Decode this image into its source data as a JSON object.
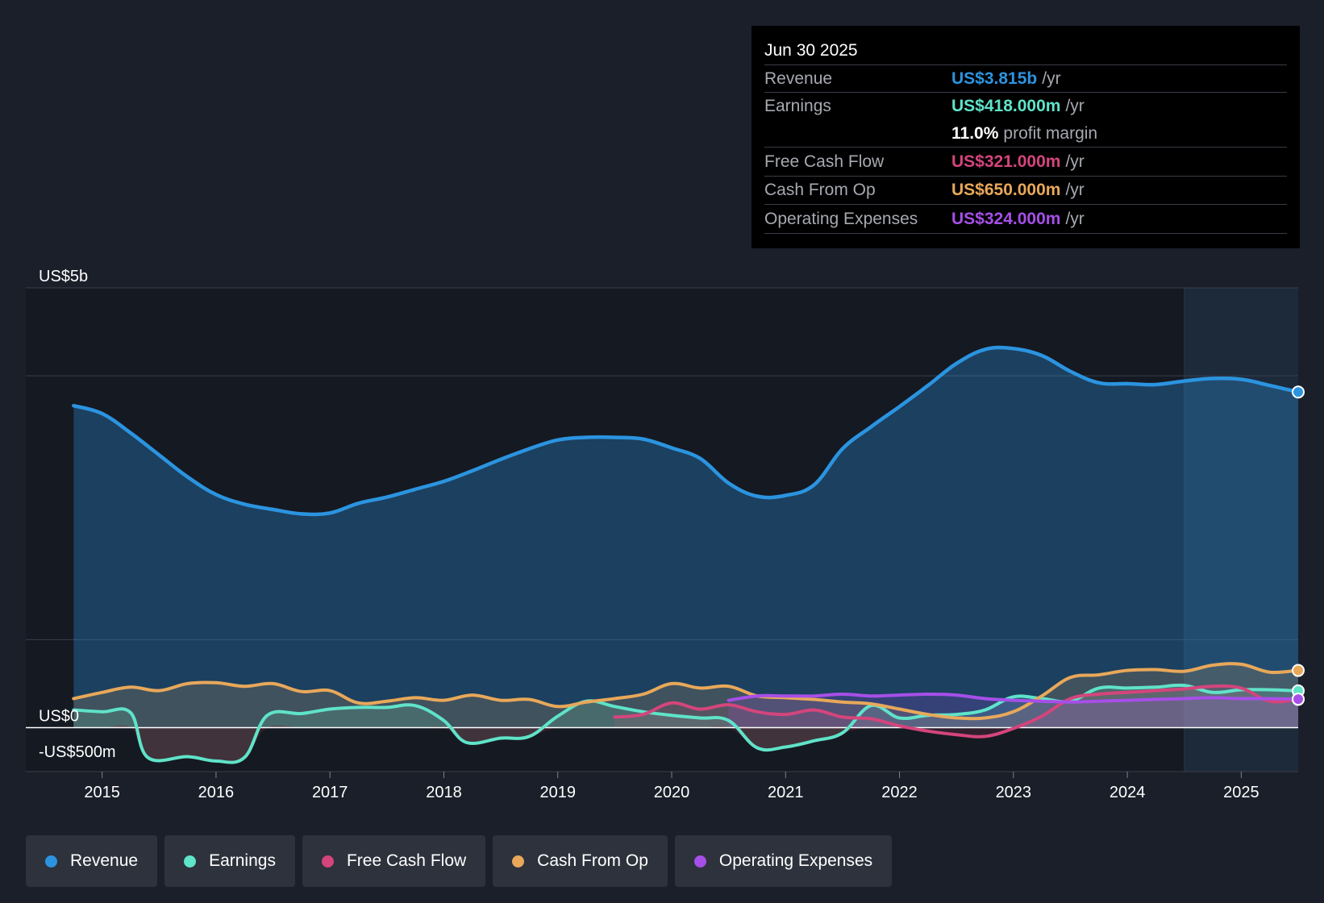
{
  "colors": {
    "revenue": "#2b94e0",
    "earnings": "#5fe3c9",
    "free_cash_flow": "#d4457c",
    "cash_from_op": "#e8a85a",
    "operating_expenses": "#a64fe8",
    "background": "#1b1f2a"
  },
  "tooltip": {
    "date": "Jun 30 2025",
    "rows": [
      {
        "label": "Revenue",
        "value": "US$3.815b",
        "unit": "/yr"
      },
      {
        "label": "Earnings",
        "value": "US$418.000m",
        "unit": "/yr"
      },
      {
        "label": "Free Cash Flow",
        "value": "US$321.000m",
        "unit": "/yr"
      },
      {
        "label": "Cash From Op",
        "value": "US$650.000m",
        "unit": "/yr"
      },
      {
        "label": "Operating Expenses",
        "value": "US$324.000m",
        "unit": "/yr"
      }
    ],
    "margin_value": "11.0%",
    "margin_label": "profit margin"
  },
  "legend": [
    {
      "label": "Revenue",
      "key": "revenue"
    },
    {
      "label": "Earnings",
      "key": "earnings"
    },
    {
      "label": "Free Cash Flow",
      "key": "free_cash_flow"
    },
    {
      "label": "Cash From Op",
      "key": "cash_from_op"
    },
    {
      "label": "Operating Expenses",
      "key": "operating_expenses"
    }
  ],
  "chart_data": {
    "type": "area",
    "title": "",
    "xlabel": "",
    "ylabel": "",
    "unit": "US$ m",
    "y_tick_labels": [
      {
        "value": 5000,
        "label": "US$5b"
      },
      {
        "value": 0,
        "label": "US$0"
      },
      {
        "value": -500,
        "label": "-US$500m"
      }
    ],
    "x_tick_labels": [
      "2015",
      "2016",
      "2017",
      "2018",
      "2019",
      "2020",
      "2021",
      "2022",
      "2023",
      "2024",
      "2025"
    ],
    "x_range": [
      2014.33,
      2025.5
    ],
    "ylim": [
      -500,
      5000
    ],
    "highlight_start": 2024.5,
    "series": [
      {
        "key": "revenue",
        "name": "Revenue",
        "points": [
          [
            2014.75,
            3660
          ],
          [
            2015,
            3570
          ],
          [
            2015.25,
            3350
          ],
          [
            2015.5,
            3100
          ],
          [
            2015.75,
            2850
          ],
          [
            2016,
            2650
          ],
          [
            2016.25,
            2540
          ],
          [
            2016.5,
            2480
          ],
          [
            2016.75,
            2430
          ],
          [
            2017,
            2440
          ],
          [
            2017.25,
            2550
          ],
          [
            2017.5,
            2620
          ],
          [
            2017.75,
            2710
          ],
          [
            2018,
            2800
          ],
          [
            2018.25,
            2920
          ],
          [
            2018.5,
            3050
          ],
          [
            2018.75,
            3170
          ],
          [
            2019,
            3270
          ],
          [
            2019.25,
            3300
          ],
          [
            2019.5,
            3300
          ],
          [
            2019.75,
            3280
          ],
          [
            2020,
            3180
          ],
          [
            2020.25,
            3060
          ],
          [
            2020.5,
            2780
          ],
          [
            2020.75,
            2630
          ],
          [
            2021,
            2640
          ],
          [
            2021.25,
            2760
          ],
          [
            2021.5,
            3170
          ],
          [
            2021.75,
            3420
          ],
          [
            2022,
            3650
          ],
          [
            2022.25,
            3890
          ],
          [
            2022.5,
            4140
          ],
          [
            2022.75,
            4300
          ],
          [
            2023,
            4310
          ],
          [
            2023.25,
            4230
          ],
          [
            2023.5,
            4050
          ],
          [
            2023.75,
            3920
          ],
          [
            2024,
            3910
          ],
          [
            2024.25,
            3900
          ],
          [
            2024.5,
            3940
          ],
          [
            2024.75,
            3970
          ],
          [
            2025,
            3960
          ],
          [
            2025.25,
            3890
          ],
          [
            2025.5,
            3815
          ]
        ]
      },
      {
        "key": "earnings",
        "name": "Earnings",
        "points": [
          [
            2014.75,
            200
          ],
          [
            2015,
            180
          ],
          [
            2015.25,
            170
          ],
          [
            2015.4,
            -340
          ],
          [
            2015.75,
            -330
          ],
          [
            2016,
            -380
          ],
          [
            2016.25,
            -340
          ],
          [
            2016.45,
            140
          ],
          [
            2016.75,
            160
          ],
          [
            2017,
            210
          ],
          [
            2017.25,
            230
          ],
          [
            2017.5,
            230
          ],
          [
            2017.75,
            250
          ],
          [
            2018,
            80
          ],
          [
            2018.2,
            -170
          ],
          [
            2018.5,
            -120
          ],
          [
            2018.75,
            -100
          ],
          [
            2019,
            130
          ],
          [
            2019.25,
            300
          ],
          [
            2019.5,
            240
          ],
          [
            2019.75,
            180
          ],
          [
            2020,
            140
          ],
          [
            2020.25,
            110
          ],
          [
            2020.5,
            80
          ],
          [
            2020.75,
            -230
          ],
          [
            2021,
            -220
          ],
          [
            2021.25,
            -150
          ],
          [
            2021.5,
            -60
          ],
          [
            2021.75,
            250
          ],
          [
            2022,
            110
          ],
          [
            2022.25,
            140
          ],
          [
            2022.5,
            150
          ],
          [
            2022.75,
            200
          ],
          [
            2023,
            350
          ],
          [
            2023.25,
            330
          ],
          [
            2023.5,
            300
          ],
          [
            2023.75,
            450
          ],
          [
            2024,
            450
          ],
          [
            2024.25,
            460
          ],
          [
            2024.5,
            480
          ],
          [
            2024.75,
            400
          ],
          [
            2025,
            430
          ],
          [
            2025.25,
            430
          ],
          [
            2025.5,
            418
          ]
        ]
      },
      {
        "key": "free_cash_flow",
        "name": "Free Cash Flow",
        "points": [
          [
            2019.5,
            120
          ],
          [
            2019.75,
            150
          ],
          [
            2020,
            280
          ],
          [
            2020.25,
            210
          ],
          [
            2020.5,
            260
          ],
          [
            2020.75,
            180
          ],
          [
            2021,
            150
          ],
          [
            2021.25,
            200
          ],
          [
            2021.5,
            120
          ],
          [
            2021.75,
            100
          ],
          [
            2022,
            20
          ],
          [
            2022.25,
            -40
          ],
          [
            2022.5,
            -80
          ],
          [
            2022.75,
            -100
          ],
          [
            2023,
            -10
          ],
          [
            2023.25,
            130
          ],
          [
            2023.5,
            330
          ],
          [
            2023.75,
            380
          ],
          [
            2024,
            400
          ],
          [
            2024.25,
            420
          ],
          [
            2024.5,
            440
          ],
          [
            2024.75,
            470
          ],
          [
            2025,
            450
          ],
          [
            2025.25,
            300
          ],
          [
            2025.5,
            321
          ]
        ]
      },
      {
        "key": "cash_from_op",
        "name": "Cash From Op",
        "points": [
          [
            2014.75,
            330
          ],
          [
            2015,
            400
          ],
          [
            2015.25,
            460
          ],
          [
            2015.5,
            420
          ],
          [
            2015.75,
            500
          ],
          [
            2016,
            510
          ],
          [
            2016.25,
            470
          ],
          [
            2016.5,
            500
          ],
          [
            2016.75,
            410
          ],
          [
            2017,
            420
          ],
          [
            2017.25,
            280
          ],
          [
            2017.5,
            300
          ],
          [
            2017.75,
            340
          ],
          [
            2018,
            310
          ],
          [
            2018.25,
            370
          ],
          [
            2018.5,
            310
          ],
          [
            2018.75,
            320
          ],
          [
            2019,
            240
          ],
          [
            2019.25,
            290
          ],
          [
            2019.5,
            330
          ],
          [
            2019.75,
            380
          ],
          [
            2020,
            500
          ],
          [
            2020.25,
            450
          ],
          [
            2020.5,
            470
          ],
          [
            2020.75,
            360
          ],
          [
            2021,
            340
          ],
          [
            2021.25,
            320
          ],
          [
            2021.5,
            290
          ],
          [
            2021.75,
            270
          ],
          [
            2022,
            210
          ],
          [
            2022.25,
            150
          ],
          [
            2022.5,
            110
          ],
          [
            2022.75,
            110
          ],
          [
            2023,
            180
          ],
          [
            2023.25,
            360
          ],
          [
            2023.5,
            570
          ],
          [
            2023.75,
            600
          ],
          [
            2024,
            650
          ],
          [
            2024.25,
            660
          ],
          [
            2024.5,
            640
          ],
          [
            2024.75,
            710
          ],
          [
            2025,
            720
          ],
          [
            2025.25,
            630
          ],
          [
            2025.5,
            650
          ]
        ]
      },
      {
        "key": "operating_expenses",
        "name": "Operating Expenses",
        "points": [
          [
            2020.5,
            310
          ],
          [
            2020.75,
            360
          ],
          [
            2021,
            360
          ],
          [
            2021.25,
            360
          ],
          [
            2021.5,
            380
          ],
          [
            2021.75,
            360
          ],
          [
            2022,
            370
          ],
          [
            2022.25,
            380
          ],
          [
            2022.5,
            370
          ],
          [
            2022.75,
            330
          ],
          [
            2023,
            310
          ],
          [
            2023.25,
            300
          ],
          [
            2023.5,
            290
          ],
          [
            2023.75,
            300
          ],
          [
            2024,
            310
          ],
          [
            2024.25,
            320
          ],
          [
            2024.5,
            330
          ],
          [
            2024.75,
            340
          ],
          [
            2025,
            330
          ],
          [
            2025.25,
            330
          ],
          [
            2025.5,
            324
          ]
        ]
      }
    ]
  }
}
